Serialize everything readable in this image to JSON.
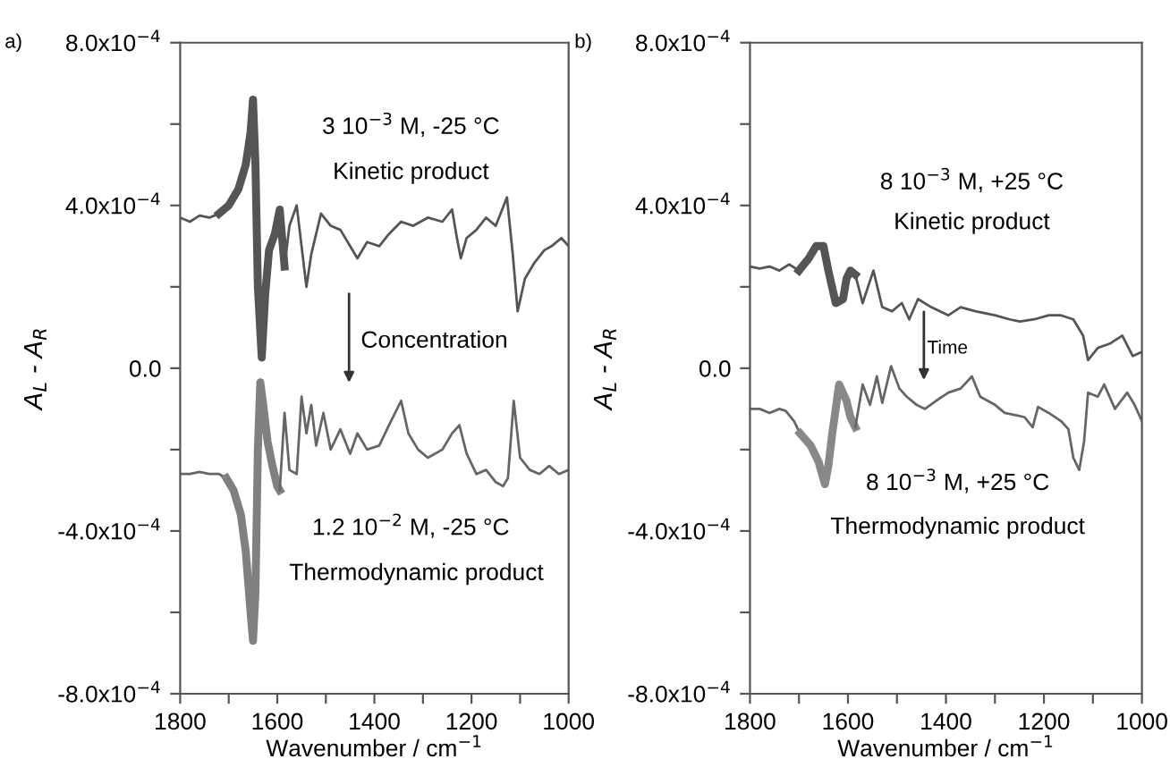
{
  "chart_data": [
    {
      "type": "line",
      "xlabel": "Wavenumber / cm$^{−1}$",
      "ylabel": "A$_{L}$ - A$_{R}$",
      "xlim": [
        1800,
        1000
      ],
      "ylim": [
        -0.0008,
        0.0008
      ],
      "xticks": [
        1800,
        {
          "value": 1700,
          "label": null
        },
        1600,
        {
          "value": 1500,
          "label": null
        },
        1400,
        {
          "value": 1300,
          "label": null
        },
        1200,
        {
          "value": 1100,
          "label": null
        },
        1000
      ],
      "yticks": [
        {
          "value": -0.0008,
          "label": "-8.0x10$^{−4}$"
        },
        {
          "value": -0.0006,
          "label": null
        },
        {
          "value": -0.0004,
          "label": "-4.0x10$^{−4}$"
        },
        {
          "value": -0.0002,
          "label": null
        },
        {
          "value": 0,
          "label": "0.0"
        },
        {
          "value": 0.0002,
          "label": null
        },
        {
          "value": 0.0004,
          "label": "4.0x10$^{−4}$"
        },
        {
          "value": 0.0006,
          "label": null
        },
        {
          "value": 0.0008,
          "label": "8.0x10$^{−4}$"
        }
      ],
      "grid": false,
      "legend": false,
      "marker": "none",
      "line_style": "solid",
      "series": [
        {
          "color": "#555555",
          "x": [
            1800,
            1780,
            1760,
            1740,
            1720
          ],
          "values": [
            0.00037,
            0.00036,
            0.000375,
            0.00037,
            0.00038
          ]
        },
        {
          "color": "#555555",
          "x": [
            1720,
            1700,
            1680,
            1665,
            1655,
            1650,
            1645,
            1640,
            1632,
            1625,
            1617,
            1605,
            1595,
            1585
          ],
          "values": [
            0.00038,
            0.0004,
            0.00044,
            0.0005,
            0.00058,
            0.00066,
            0.0005,
            0.0002,
            2.6e-05,
            0.00018,
            0.00029,
            0.00033,
            0.00039,
            0.00025
          ]
        },
        {
          "color": "#555555",
          "x": [
            1585,
            1575,
            1560,
            1550,
            1540,
            1530,
            1510,
            1490,
            1470,
            1450,
            1435,
            1415,
            1390,
            1370,
            1345,
            1320,
            1290,
            1260,
            1240,
            1230,
            1222,
            1210,
            1190,
            1170,
            1150,
            1127,
            1115,
            1105,
            1090,
            1070,
            1050,
            1035,
            1015,
            1000
          ],
          "values": [
            0.00025,
            0.00035,
            0.0004,
            0.0003,
            0.0002,
            0.00028,
            0.00038,
            0.00035,
            0.00034,
            0.0003,
            0.00027,
            0.00031,
            0.0003,
            0.00033,
            0.00036,
            0.00035,
            0.00037,
            0.00036,
            0.00039,
            0.00032,
            0.00027,
            0.00032,
            0.00034,
            0.00037,
            0.00035,
            0.00042,
            0.00028,
            0.00014,
            0.00022,
            0.00026,
            0.00029,
            0.0003,
            0.00032,
            0.0003
          ]
        },
        {
          "color": "#666666",
          "x": [
            1800,
            1780,
            1760,
            1740,
            1720,
            1705
          ],
          "values": [
            -0.00026,
            -0.00026,
            -0.000255,
            -0.00026,
            -0.00026,
            -0.00027
          ]
        },
        {
          "color": "#808080",
          "x": [
            1705,
            1690,
            1675,
            1665,
            1655,
            1650,
            1645,
            1640,
            1635,
            1630,
            1620,
            1610,
            1600,
            1595
          ],
          "values": [
            -0.00027,
            -0.0003,
            -0.00036,
            -0.00045,
            -0.0006,
            -0.00067,
            -0.00055,
            -0.0002,
            -3.5e-05,
            -8e-05,
            -0.00018,
            -0.00024,
            -0.00029,
            -0.0003
          ]
        },
        {
          "color": "#666666",
          "x": [
            1595,
            1585,
            1575,
            1560,
            1550,
            1540,
            1530,
            1520,
            1505,
            1490,
            1470,
            1450,
            1435,
            1415,
            1390,
            1370,
            1345,
            1330,
            1310,
            1290,
            1260,
            1240,
            1225,
            1210,
            1190,
            1170,
            1150,
            1135,
            1125,
            1113,
            1100,
            1080,
            1060,
            1040,
            1020,
            1000
          ],
          "values": [
            -0.0003,
            -0.00011,
            -0.00025,
            -0.00026,
            -7e-05,
            -0.00016,
            -9e-05,
            -0.00019,
            -0.00011,
            -0.0002,
            -0.00015,
            -0.00021,
            -0.00016,
            -0.0002,
            -0.00019,
            -0.00014,
            -8e-05,
            -0.00016,
            -0.0002,
            -0.00022,
            -0.0002,
            -0.00016,
            -0.00014,
            -0.00021,
            -0.00026,
            -0.00025,
            -0.00028,
            -0.00029,
            -0.00027,
            -8e-05,
            -0.00022,
            -0.00025,
            -0.00026,
            -0.00024,
            -0.00026,
            -0.00025
          ]
        }
      ],
      "annotations": [
        "3 10$^{−3}$ M, -25 °C",
        "Kinetic product",
        "1.2 10$^{−2}$ M, -25 °C",
        "Thermodynamic product",
        "Concentration",
        "a)"
      ]
    },
    {
      "type": "line",
      "xlabel": "Wavenumber / cm$^{−1}$",
      "ylabel": "A$_{L}$ - A$_{R}$",
      "xlim": [
        1800,
        1000
      ],
      "ylim": [
        -0.0008,
        0.0008
      ],
      "xticks": [
        1800,
        {
          "value": 1700,
          "label": null
        },
        1600,
        {
          "value": 1500,
          "label": null
        },
        1400,
        {
          "value": 1300,
          "label": null
        },
        1200,
        {
          "value": 1100,
          "label": null
        },
        1000
      ],
      "yticks": [
        {
          "value": -0.0008,
          "label": "-8.0x10$^{−4}$"
        },
        {
          "value": -0.0006,
          "label": null
        },
        {
          "value": -0.0004,
          "label": "-4.0x10$^{−4}$"
        },
        {
          "value": -0.0002,
          "label": null
        },
        {
          "value": 0,
          "label": "0.0"
        },
        {
          "value": 0.0002,
          "label": null
        },
        {
          "value": 0.0004,
          "label": "4.0x10$^{−4}$"
        },
        {
          "value": 0.0006,
          "label": null
        },
        {
          "value": 0.0008,
          "label": "8.0x10$^{−4}$"
        }
      ],
      "grid": false,
      "legend": false,
      "marker": "none",
      "line_style": "solid",
      "series": [
        {
          "color": "#555555",
          "x": [
            1800,
            1780,
            1760,
            1740,
            1720,
            1700
          ],
          "values": [
            0.00025,
            0.000245,
            0.00025,
            0.00024,
            0.000255,
            0.00024
          ]
        },
        {
          "color": "#555555",
          "x": [
            1700,
            1680,
            1665,
            1650,
            1640,
            1625,
            1610,
            1603,
            1595,
            1585
          ],
          "values": [
            0.00024,
            0.00027,
            0.0003,
            0.0003,
            0.00024,
            0.00016,
            0.00017,
            0.00022,
            0.00024,
            0.00023
          ]
        },
        {
          "color": "#555555",
          "x": [
            1585,
            1570,
            1548,
            1530,
            1510,
            1490,
            1475,
            1457,
            1430,
            1395,
            1370,
            1340,
            1300,
            1270,
            1249,
            1220,
            1190,
            1165,
            1140,
            1120,
            1110,
            1090,
            1066,
            1040,
            1019,
            1000
          ],
          "values": [
            0.00023,
            0.00016,
            0.00024,
            0.00015,
            0.00014,
            0.00016,
            0.00012,
            0.00017,
            0.00015,
            0.00013,
            0.00015,
            0.00014,
            0.00013,
            0.00012,
            0.000115,
            0.00012,
            0.00013,
            0.00013,
            0.00012,
            8e-05,
            2e-05,
            5e-05,
            6e-05,
            8e-05,
            3e-05,
            4e-05
          ]
        },
        {
          "color": "#666666",
          "x": [
            1800,
            1780,
            1760,
            1740,
            1727,
            1710,
            1698
          ],
          "values": [
            -0.0001,
            -0.0001,
            -0.00011,
            -0.0001,
            -0.000105,
            -0.00013,
            -0.00016
          ]
        },
        {
          "color": "#888888",
          "x": [
            1698,
            1676,
            1660,
            1647,
            1640,
            1632,
            1618,
            1603,
            1595,
            1585
          ],
          "values": [
            -0.00016,
            -0.00019,
            -0.00023,
            -0.000285,
            -0.00024,
            -0.00016,
            -4e-05,
            -8e-05,
            -0.00012,
            -0.000145
          ]
        },
        {
          "color": "#666666",
          "x": [
            1585,
            1570,
            1555,
            1541,
            1530,
            1512,
            1495,
            1480,
            1460,
            1443,
            1420,
            1395,
            1370,
            1347,
            1330,
            1300,
            1280,
            1260,
            1240,
            1223,
            1212,
            1190,
            1165,
            1150,
            1140,
            1128,
            1118,
            1110,
            1090,
            1077,
            1055,
            1030,
            1015,
            1000
          ],
          "values": [
            -0.000145,
            -4e-05,
            -9e-05,
            -2e-05,
            -8.5e-05,
            5e-06,
            -5e-05,
            -7e-05,
            -9e-05,
            -0.0001,
            -8e-05,
            -6e-05,
            -5e-05,
            -2e-05,
            -7e-05,
            -9e-05,
            -0.00011,
            -0.000115,
            -0.00012,
            -0.000145,
            -9.5e-05,
            -0.00011,
            -0.00013,
            -0.00015,
            -0.00022,
            -0.00025,
            -0.00018,
            -6e-05,
            -7e-05,
            -4e-05,
            -0.0001,
            -6e-05,
            -9e-05,
            -0.00013
          ]
        }
      ],
      "annotations": [
        "8 10$^{−3}$ M, +25 °C",
        "Kinetic product",
        "8 10$^{−3}$ M, +25 °C",
        "Thermodynamic product",
        "Time",
        "b)"
      ]
    }
  ]
}
